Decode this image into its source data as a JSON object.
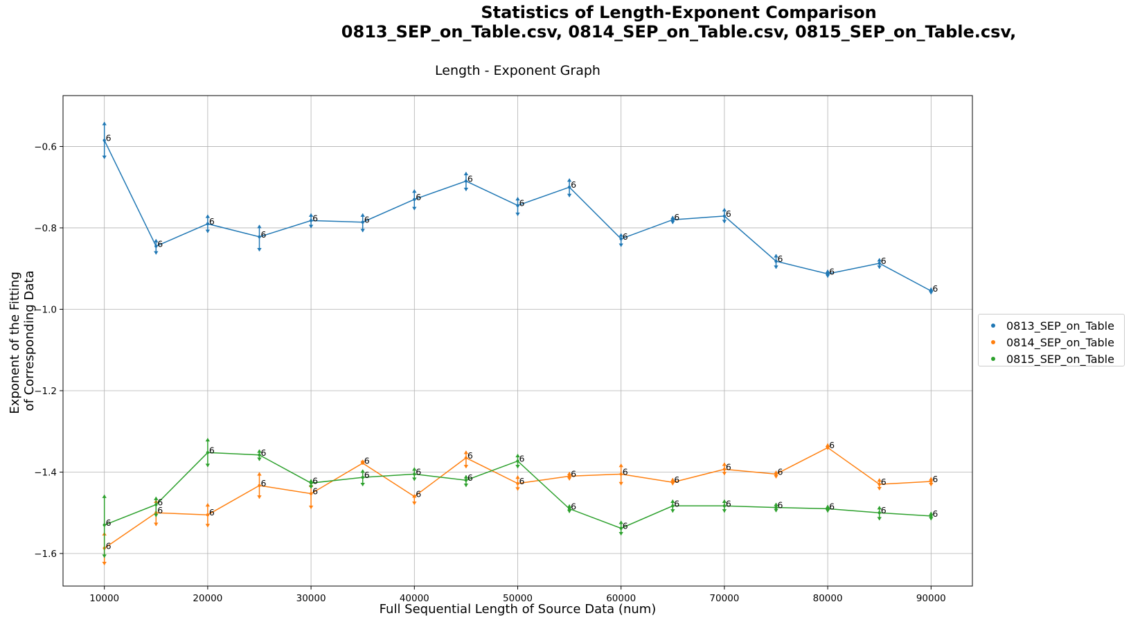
{
  "suptitle_line1": "Statistics of  Length-Exponent Comparison",
  "suptitle_line2": "0813_SEP_on_Table.csv, 0814_SEP_on_Table.csv, 0815_SEP_on_Table.csv,",
  "chart_data": {
    "type": "line",
    "title": "Length - Exponent Graph",
    "xlabel": "Full Sequential Length of Source Data (num)",
    "ylabel_line1": "Exponent of the Fitting",
    "ylabel_line2": "of Corresponding Data",
    "xlim": [
      6000,
      94000
    ],
    "ylim": [
      -1.68,
      -0.475
    ],
    "xticks": [
      10000,
      20000,
      30000,
      40000,
      50000,
      60000,
      70000,
      80000,
      90000
    ],
    "yticks": [
      -1.6,
      -1.4,
      -1.2,
      -1.0,
      -0.8,
      -0.6
    ],
    "grid": true,
    "legend_position": "right",
    "x": [
      10000,
      15000,
      20000,
      25000,
      30000,
      35000,
      40000,
      45000,
      50000,
      55000,
      60000,
      65000,
      70000,
      75000,
      80000,
      85000,
      90000
    ],
    "point_label": "6",
    "series": [
      {
        "name": "0813_SEP_on_Table",
        "color": "#1f77b4",
        "values": [
          -0.585,
          -0.845,
          -0.79,
          -0.822,
          -0.782,
          -0.786,
          -0.73,
          -0.685,
          -0.745,
          -0.7,
          -0.827,
          -0.78,
          -0.771,
          -0.882,
          -0.913,
          -0.887,
          -0.955
        ],
        "err_upper": [
          -0.54,
          -0.828,
          -0.768,
          -0.793,
          -0.765,
          -0.765,
          -0.706,
          -0.663,
          -0.725,
          -0.679,
          -0.814,
          -0.771,
          -0.752,
          -0.865,
          -0.903,
          -0.875,
          -0.947
        ],
        "err_lower": [
          -0.63,
          -0.865,
          -0.812,
          -0.857,
          -0.8,
          -0.81,
          -0.756,
          -0.709,
          -0.77,
          -0.724,
          -0.846,
          -0.79,
          -0.788,
          -0.9,
          -0.922,
          -0.9,
          -0.963
        ]
      },
      {
        "name": "0814_SEP_on_Table",
        "color": "#ff7f0e",
        "values": [
          -1.587,
          -1.5,
          -1.505,
          -1.433,
          -1.453,
          -1.378,
          -1.46,
          -1.365,
          -1.428,
          -1.41,
          -1.405,
          -1.425,
          -1.393,
          -1.405,
          -1.34,
          -1.43,
          -1.423
        ],
        "err_upper": [
          -1.548,
          -1.468,
          -1.477,
          -1.401,
          -1.429,
          -1.37,
          -1.455,
          -1.348,
          -1.409,
          -1.4,
          -1.38,
          -1.415,
          -1.377,
          -1.397,
          -1.33,
          -1.416,
          -1.413
        ],
        "err_lower": [
          -1.628,
          -1.532,
          -1.535,
          -1.465,
          -1.49,
          -1.38,
          -1.48,
          -1.39,
          -1.445,
          -1.42,
          -1.432,
          -1.432,
          -1.407,
          -1.415,
          -1.345,
          -1.444,
          -1.434
        ]
      },
      {
        "name": "0815_SEP_on_Table",
        "color": "#2ca02c",
        "values": [
          -1.53,
          -1.48,
          -1.352,
          -1.358,
          -1.427,
          -1.413,
          -1.405,
          -1.42,
          -1.373,
          -1.49,
          -1.538,
          -1.483,
          -1.483,
          -1.487,
          -1.49,
          -1.5,
          -1.508
        ],
        "err_upper": [
          -1.456,
          -1.461,
          -1.317,
          -1.345,
          -1.418,
          -1.394,
          -1.389,
          -1.408,
          -1.356,
          -1.48,
          -1.52,
          -1.468,
          -1.468,
          -1.476,
          -1.481,
          -1.484,
          -1.498
        ],
        "err_lower": [
          -1.61,
          -1.51,
          -1.387,
          -1.372,
          -1.44,
          -1.434,
          -1.421,
          -1.436,
          -1.39,
          -1.5,
          -1.555,
          -1.499,
          -1.499,
          -1.498,
          -1.499,
          -1.518,
          -1.518
        ]
      }
    ]
  }
}
